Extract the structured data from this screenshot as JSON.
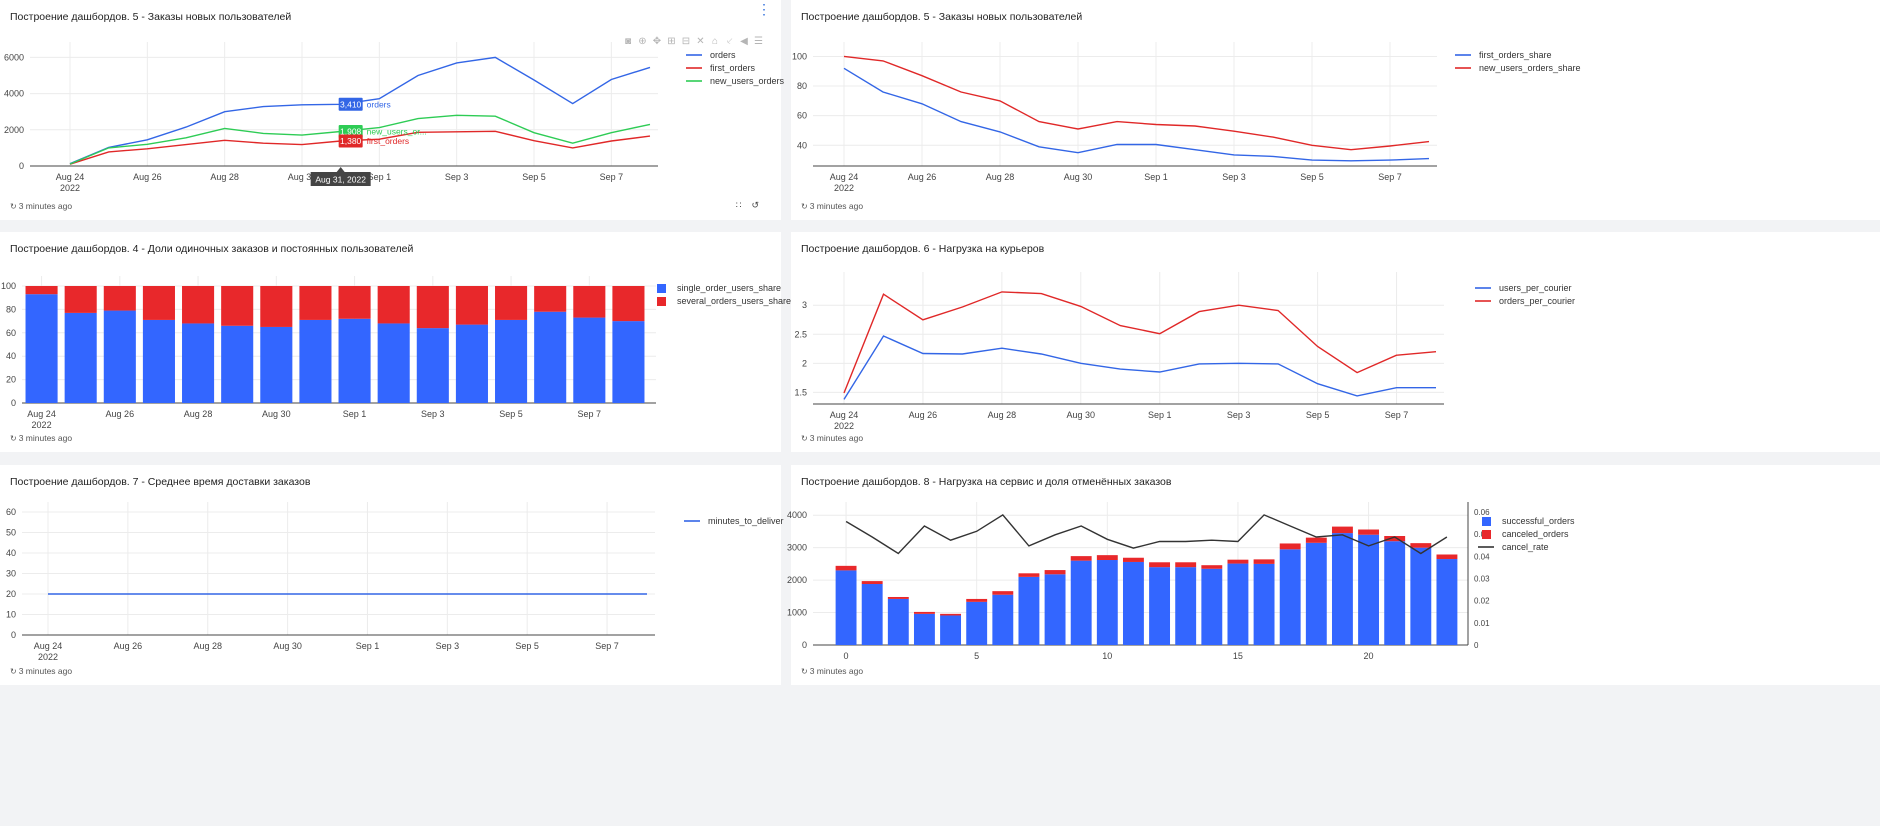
{
  "panels": [
    {
      "id": "p1",
      "title": "Построение дашбордов. 5 - Заказы новых пользователей",
      "footer": "3 minutes ago",
      "chart_data": {
        "type": "line",
        "x": [
          "Aug 24",
          "Aug 25",
          "Aug 26",
          "Aug 27",
          "Aug 28",
          "Aug 29",
          "Aug 30",
          "Aug 31",
          "Sep 1",
          "Sep 2",
          "Sep 3",
          "Sep 4",
          "Sep 5",
          "Sep 6",
          "Sep 7",
          "Sep 8"
        ],
        "xticks": [
          "Aug 24",
          "Aug 26",
          "Aug 28",
          "Aug 30",
          "Sep 1",
          "Sep 3",
          "Sep 5",
          "Sep 7"
        ],
        "xtick_year": "2022",
        "ylim": [
          0,
          6300
        ],
        "yticks": [
          0,
          2000,
          4000,
          6000
        ],
        "series": [
          {
            "name": "orders",
            "color": "#3366e6",
            "values": [
              130,
              1030,
              1450,
              2150,
              3000,
              3280,
              3380,
              3410,
              3720,
              5000,
              5700,
              6000,
              4750,
              3450,
              4780,
              5450
            ]
          },
          {
            "name": "first_orders",
            "color": "#e02828",
            "values": [
              100,
              780,
              950,
              1180,
              1420,
              1260,
              1180,
              1380,
              1480,
              1860,
              1890,
              1920,
              1400,
              1000,
              1380,
              1650
            ]
          },
          {
            "name": "new_users_orders",
            "color": "#2ecc55",
            "values": [
              110,
              1000,
              1200,
              1560,
              2080,
              1800,
              1710,
              1908,
              2120,
              2620,
              2800,
              2750,
              1840,
              1260,
              1840,
              2300
            ]
          }
        ],
        "hover": {
          "x_label": "Aug 31, 2022",
          "labels": [
            {
              "value": "3,410",
              "name": "orders",
              "color": "#3366e6"
            },
            {
              "value": "1,908",
              "name": "new_users_or...",
              "color": "#2ecc55"
            },
            {
              "value": "1,380",
              "name": "first_orders",
              "color": "#e02828"
            }
          ]
        }
      }
    },
    {
      "id": "p2",
      "title": "Построение дашбордов. 5 - Заказы новых пользователей",
      "footer": "3 minutes ago",
      "chart_data": {
        "type": "line",
        "x": [
          "Aug 24",
          "Aug 25",
          "Aug 26",
          "Aug 27",
          "Aug 28",
          "Aug 29",
          "Aug 30",
          "Aug 31",
          "Sep 1",
          "Sep 2",
          "Sep 3",
          "Sep 4",
          "Sep 5",
          "Sep 6",
          "Sep 7",
          "Sep 8"
        ],
        "xticks": [
          "Aug 24",
          "Aug 26",
          "Aug 28",
          "Aug 30",
          "Sep 1",
          "Sep 3",
          "Sep 5",
          "Sep 7"
        ],
        "xtick_year": "2022",
        "ylim": [
          26,
          103
        ],
        "yticks": [
          40,
          60,
          80,
          100
        ],
        "series": [
          {
            "name": "first_orders_share",
            "color": "#3366e6",
            "values": [
              92,
              76,
              68,
              56,
              49,
              39,
              35,
              40.5,
              40.5,
              37,
              33.5,
              32.5,
              30,
              29.5,
              30,
              31
            ]
          },
          {
            "name": "new_users_orders_share",
            "color": "#e02828",
            "values": [
              100,
              97,
              87,
              76,
              70,
              56,
              51,
              56,
              54,
              53,
              49.5,
              45.5,
              40,
              37,
              39.5,
              42.5
            ]
          }
        ]
      }
    },
    {
      "id": "p3",
      "title": "Построение дашбордов. 4 - Доли одиночных заказов и постоянных пользователей",
      "footer": "3 minutes ago",
      "chart_data": {
        "type": "bar",
        "stacked": true,
        "x": [
          "Aug 24",
          "Aug 25",
          "Aug 26",
          "Aug 27",
          "Aug 28",
          "Aug 29",
          "Aug 30",
          "Aug 31",
          "Sep 1",
          "Sep 2",
          "Sep 3",
          "Sep 4",
          "Sep 5",
          "Sep 6",
          "Sep 7",
          "Sep 8"
        ],
        "xticks": [
          "Aug 24",
          "Aug 26",
          "Aug 28",
          "Aug 30",
          "Sep 1",
          "Sep 3",
          "Sep 5",
          "Sep 7"
        ],
        "xtick_year": "2022",
        "ylim": [
          0,
          100
        ],
        "yticks": [
          0,
          20,
          40,
          60,
          80,
          100
        ],
        "series": [
          {
            "name": "single_order_users_share",
            "color": "#3366ff",
            "values": [
              93,
              77,
              79,
              71,
              68,
              66,
              65,
              71,
              72,
              68,
              64,
              67,
              71,
              78,
              73,
              70
            ]
          },
          {
            "name": "several_orders_users_share",
            "color": "#e8282b",
            "values": [
              7,
              23,
              21,
              29,
              32,
              34,
              35,
              29,
              28,
              32,
              36,
              33,
              29,
              22,
              27,
              30
            ]
          }
        ]
      }
    },
    {
      "id": "p4",
      "title": "Построение дашбордов. 6 - Нагрузка на курьеров",
      "footer": "3 minutes ago",
      "chart_data": {
        "type": "line",
        "x": [
          "Aug 24",
          "Aug 25",
          "Aug 26",
          "Aug 27",
          "Aug 28",
          "Aug 29",
          "Aug 30",
          "Aug 31",
          "Sep 1",
          "Sep 2",
          "Sep 3",
          "Sep 4",
          "Sep 5",
          "Sep 6",
          "Sep 7",
          "Sep 8"
        ],
        "xticks": [
          "Aug 24",
          "Aug 26",
          "Aug 28",
          "Aug 30",
          "Sep 1",
          "Sep 3",
          "Sep 5",
          "Sep 7"
        ],
        "xtick_year": "2022",
        "ylim": [
          1.3,
          3.4
        ],
        "yticks": [
          1.5,
          2,
          2.5,
          3
        ],
        "ytick_labels": [
          "1.5",
          "2",
          "2.5",
          "3"
        ],
        "series": [
          {
            "name": "users_per_courier",
            "color": "#3366e6",
            "values": [
              1.38,
              2.47,
              2.17,
              2.16,
              2.26,
              2.16,
              2.0,
              1.9,
              1.85,
              1.99,
              2.0,
              1.99,
              1.65,
              1.44,
              1.58,
              1.58
            ]
          },
          {
            "name": "orders_per_courier",
            "color": "#e02828",
            "values": [
              1.49,
              3.19,
              2.75,
              2.97,
              3.23,
              3.2,
              2.98,
              2.65,
              2.51,
              2.89,
              3.0,
              2.91,
              2.29,
              1.84,
              2.14,
              2.2
            ]
          }
        ]
      }
    },
    {
      "id": "p5",
      "title": "Построение дашбордов. 7 - Среднее время доставки заказов",
      "footer": "3 minutes ago",
      "chart_data": {
        "type": "line",
        "x": [
          "Aug 24",
          "Aug 25",
          "Aug 26",
          "Aug 27",
          "Aug 28",
          "Aug 29",
          "Aug 30",
          "Aug 31",
          "Sep 1",
          "Sep 2",
          "Sep 3",
          "Sep 4",
          "Sep 5",
          "Sep 6",
          "Sep 7",
          "Sep 8"
        ],
        "xticks": [
          "Aug 24",
          "Aug 26",
          "Aug 28",
          "Aug 30",
          "Sep 1",
          "Sep 3",
          "Sep 5",
          "Sep 7"
        ],
        "xtick_year": "2022",
        "ylim": [
          0,
          60
        ],
        "yticks": [
          0,
          10,
          20,
          30,
          40,
          50,
          60
        ],
        "series": [
          {
            "name": "minutes_to_deliver",
            "color": "#3366e6",
            "values": [
              20,
              20,
              20,
              20,
              20,
              20,
              20,
              20,
              20,
              20,
              20,
              20,
              20,
              20,
              20,
              20
            ]
          }
        ]
      }
    },
    {
      "id": "p6",
      "title": "Построение дашбордов. 8 - Нагрузка на сервис и доля отменённых заказов",
      "footer": "3 minutes ago",
      "chart_data": {
        "type": "bar",
        "stacked": true,
        "x": [
          0,
          1,
          2,
          3,
          4,
          5,
          6,
          7,
          8,
          9,
          10,
          11,
          12,
          13,
          14,
          15,
          16,
          17,
          18,
          19,
          20,
          21,
          22,
          23
        ],
        "xticks": [
          0,
          5,
          10,
          15,
          20
        ],
        "ylim": [
          0,
          4100
        ],
        "yticks": [
          0,
          1000,
          2000,
          3000,
          4000
        ],
        "y2lim": [
          0,
          0.06
        ],
        "y2ticks": [
          0,
          0.01,
          0.02,
          0.03,
          0.04,
          0.05,
          0.06
        ],
        "y2tick_labels": [
          "0",
          "0.01",
          "0.02",
          "0.03",
          "0.04",
          "0.05",
          "0.06"
        ],
        "series": [
          {
            "name": "successful_orders",
            "color": "#3366ff",
            "values": [
              2300,
              1880,
              1420,
              960,
              910,
              1330,
              1550,
              2100,
              2180,
              2600,
              2620,
              2560,
              2400,
              2400,
              2350,
              2510,
              2500,
              2950,
              3150,
              3450,
              3400,
              3200,
              3000,
              2650
            ]
          },
          {
            "name": "canceled_orders",
            "color": "#e8282b",
            "values": [
              140,
              90,
              60,
              60,
              50,
              90,
              110,
              110,
              130,
              140,
              150,
              130,
              150,
              150,
              110,
              120,
              140,
              180,
              160,
              200,
              160,
              160,
              140,
              140
            ]
          },
          {
            "name": "cancel_rate",
            "color": "#333333",
            "axis": "y2",
            "type": "line",
            "values": [
              0.0557,
              0.0487,
              0.0413,
              0.0537,
              0.0473,
              0.0513,
              0.0587,
              0.0447,
              0.0497,
              0.0537,
              0.0477,
              0.0437,
              0.0467,
              0.0467,
              0.0473,
              0.0467,
              0.0587,
              0.0537,
              0.0487,
              0.0497,
              0.0447,
              0.0487,
              0.0413,
              0.0487
            ]
          }
        ]
      }
    }
  ]
}
